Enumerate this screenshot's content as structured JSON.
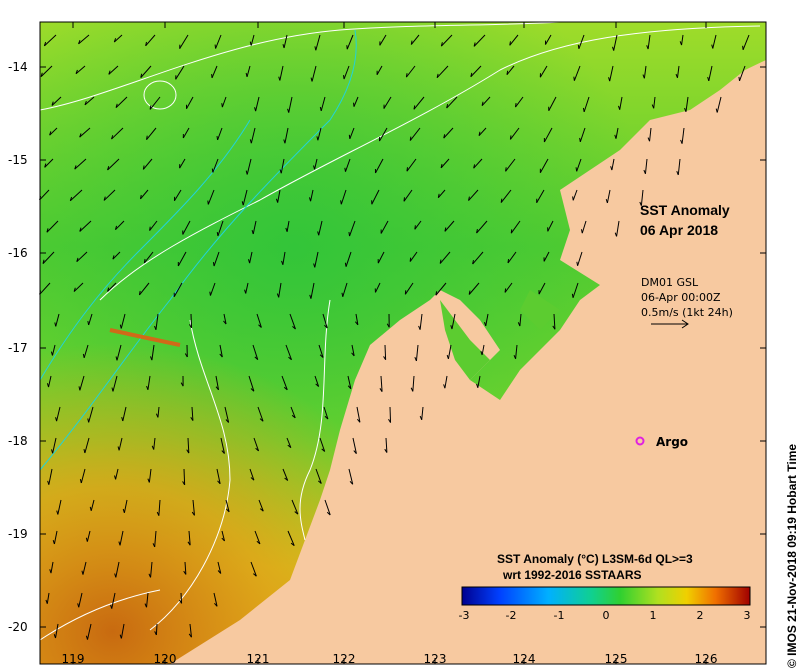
{
  "map": {
    "title_line1": "SST Anomaly",
    "title_line2": "06 Apr 2018",
    "land_color": "#f7c9a0",
    "ocean_color": "#8ddc2a",
    "contour_color": "#ffffff",
    "current_contour_color": "#22d3d8"
  },
  "axes": {
    "lat_labels": [
      "-14",
      "-15",
      "-16",
      "-17",
      "-18",
      "-19",
      "-20"
    ],
    "lon_labels": [
      "119",
      "120",
      "121",
      "122",
      "123",
      "124",
      "125",
      "126"
    ]
  },
  "velocity_legend": {
    "line1": "DM01 GSL",
    "line2": "06-Apr 00:00Z",
    "line3": "0.5m/s (1kt 24h)"
  },
  "argo": {
    "label": "Argo",
    "marker_color": "#e020e0"
  },
  "colorbar": {
    "title": "SST Anomaly (°C) L3SM-6d QL>=3",
    "subtitle": "wrt 1992-2016 SSTAARS",
    "ticks": [
      "-3",
      "-2",
      "-1",
      "0",
      "1",
      "2",
      "3"
    ]
  },
  "credit": "© IMOS 21-Nov-2018 09:19 Hobart Time"
}
